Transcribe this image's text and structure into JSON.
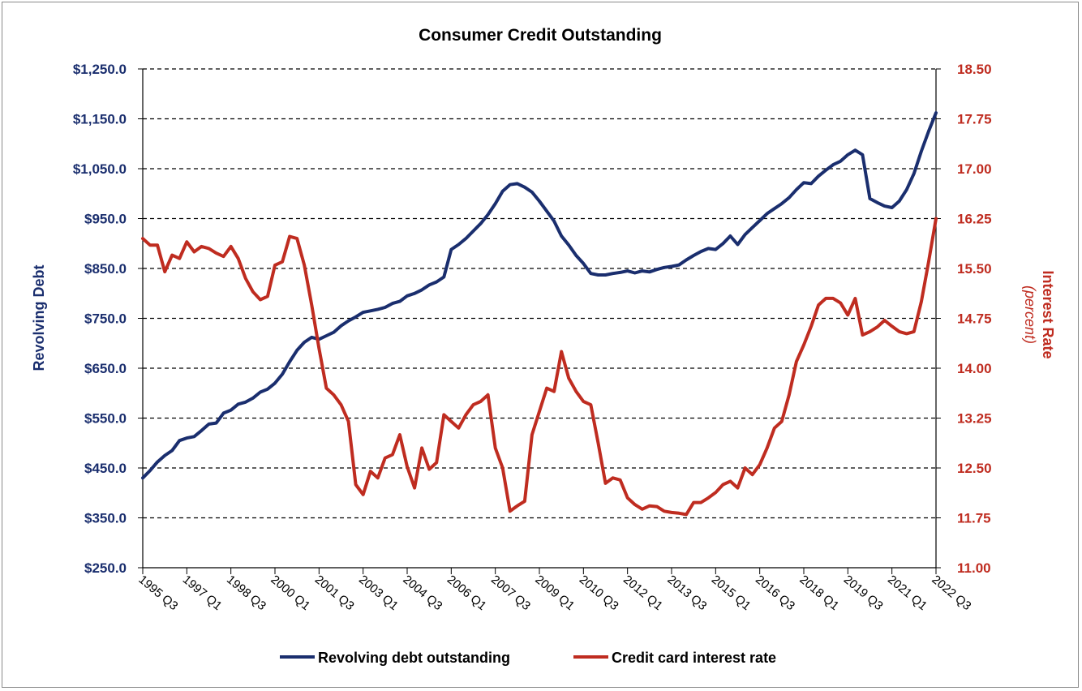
{
  "chart_data": {
    "type": "line",
    "title": "Consumer Credit Outstanding",
    "x": {
      "tick_labels": [
        "1995 Q3",
        "1997 Q1",
        "1998 Q3",
        "2000 Q1",
        "2001 Q3",
        "2003 Q1",
        "2004 Q3",
        "2006 Q1",
        "2007 Q3",
        "2009 Q1",
        "2010 Q3",
        "2012 Q1",
        "2013 Q3",
        "2015 Q1",
        "2016 Q3",
        "2018 Q1",
        "2019 Q3",
        "2021 Q1",
        "2022 Q3"
      ],
      "tick_years": [
        1995.5,
        1997.0,
        1998.5,
        2000.0,
        2001.5,
        2003.0,
        2004.5,
        2006.0,
        2007.5,
        2009.0,
        2010.5,
        2012.0,
        2013.5,
        2015.0,
        2016.5,
        2018.0,
        2019.5,
        2021.0,
        2022.5
      ],
      "range": [
        1995.5,
        2022.5
      ]
    },
    "y_left": {
      "label": "Revolving Debt",
      "ticks": [
        "$250.0",
        "$350.0",
        "$450.0",
        "$550.0",
        "$650.0",
        "$750.0",
        "$850.0",
        "$950.0",
        "$1,050.0",
        "$1,150.0",
        "$1,250.0"
      ],
      "range": [
        250,
        1250
      ]
    },
    "y_right": {
      "label": "Interest Rate",
      "unit": "(percent)",
      "ticks": [
        "11.00",
        "11.75",
        "12.50",
        "13.25",
        "14.00",
        "14.75",
        "15.50",
        "16.25",
        "17.00",
        "17.75",
        "18.50"
      ],
      "range": [
        11.0,
        18.5
      ]
    },
    "grid": "horizontal dashed",
    "legend_position": "bottom",
    "series": [
      {
        "name": "Revolving debt outstanding",
        "axis": "left",
        "color": "#1a2e6e",
        "points": [
          [
            1995.5,
            430
          ],
          [
            1995.75,
            445
          ],
          [
            1996.0,
            462
          ],
          [
            1996.25,
            475
          ],
          [
            1996.5,
            485
          ],
          [
            1996.75,
            505
          ],
          [
            1997.0,
            510
          ],
          [
            1997.25,
            513
          ],
          [
            1997.5,
            525
          ],
          [
            1997.75,
            538
          ],
          [
            1998.0,
            540
          ],
          [
            1998.25,
            560
          ],
          [
            1998.5,
            566
          ],
          [
            1998.75,
            578
          ],
          [
            1999.0,
            582
          ],
          [
            1999.25,
            590
          ],
          [
            1999.5,
            602
          ],
          [
            1999.75,
            608
          ],
          [
            2000.0,
            620
          ],
          [
            2000.25,
            638
          ],
          [
            2000.5,
            663
          ],
          [
            2000.75,
            686
          ],
          [
            2001.0,
            702
          ],
          [
            2001.25,
            712
          ],
          [
            2001.5,
            708
          ],
          [
            2001.75,
            715
          ],
          [
            2002.0,
            722
          ],
          [
            2002.25,
            735
          ],
          [
            2002.5,
            745
          ],
          [
            2002.75,
            753
          ],
          [
            2003.0,
            762
          ],
          [
            2003.25,
            765
          ],
          [
            2003.5,
            768
          ],
          [
            2003.75,
            772
          ],
          [
            2004.0,
            780
          ],
          [
            2004.25,
            784
          ],
          [
            2004.5,
            795
          ],
          [
            2004.75,
            800
          ],
          [
            2005.0,
            807
          ],
          [
            2005.25,
            817
          ],
          [
            2005.5,
            823
          ],
          [
            2005.75,
            833
          ],
          [
            2006.0,
            888
          ],
          [
            2006.25,
            898
          ],
          [
            2006.5,
            910
          ],
          [
            2006.75,
            925
          ],
          [
            2007.0,
            940
          ],
          [
            2007.25,
            958
          ],
          [
            2007.5,
            980
          ],
          [
            2007.75,
            1005
          ],
          [
            2008.0,
            1018
          ],
          [
            2008.25,
            1020
          ],
          [
            2008.5,
            1013
          ],
          [
            2008.75,
            1003
          ],
          [
            2009.0,
            985
          ],
          [
            2009.25,
            965
          ],
          [
            2009.5,
            945
          ],
          [
            2009.75,
            915
          ],
          [
            2010.0,
            897
          ],
          [
            2010.25,
            876
          ],
          [
            2010.5,
            860
          ],
          [
            2010.75,
            840
          ],
          [
            2011.0,
            837
          ],
          [
            2011.25,
            837
          ],
          [
            2011.5,
            840
          ],
          [
            2011.75,
            842
          ],
          [
            2012.0,
            845
          ],
          [
            2012.25,
            841
          ],
          [
            2012.5,
            845
          ],
          [
            2012.75,
            843
          ],
          [
            2013.0,
            848
          ],
          [
            2013.25,
            852
          ],
          [
            2013.5,
            854
          ],
          [
            2013.75,
            857
          ],
          [
            2014.0,
            867
          ],
          [
            2014.25,
            876
          ],
          [
            2014.5,
            884
          ],
          [
            2014.75,
            890
          ],
          [
            2015.0,
            888
          ],
          [
            2015.25,
            900
          ],
          [
            2015.5,
            915
          ],
          [
            2015.75,
            898
          ],
          [
            2016.0,
            918
          ],
          [
            2016.25,
            932
          ],
          [
            2016.5,
            946
          ],
          [
            2016.75,
            960
          ],
          [
            2017.0,
            970
          ],
          [
            2017.25,
            980
          ],
          [
            2017.5,
            992
          ],
          [
            2017.75,
            1008
          ],
          [
            2018.0,
            1022
          ],
          [
            2018.25,
            1020
          ],
          [
            2018.5,
            1035
          ],
          [
            2018.75,
            1047
          ],
          [
            2019.0,
            1058
          ],
          [
            2019.25,
            1065
          ],
          [
            2019.5,
            1078
          ],
          [
            2019.75,
            1087
          ],
          [
            2020.0,
            1078
          ],
          [
            2020.25,
            990
          ],
          [
            2020.5,
            982
          ],
          [
            2020.75,
            975
          ],
          [
            2021.0,
            972
          ],
          [
            2021.25,
            985
          ],
          [
            2021.5,
            1008
          ],
          [
            2021.75,
            1040
          ],
          [
            2022.0,
            1085
          ],
          [
            2022.25,
            1125
          ],
          [
            2022.5,
            1162
          ]
        ]
      },
      {
        "name": "Credit card interest rate",
        "axis": "right",
        "color": "#bf2c20",
        "points": [
          [
            1995.5,
            15.95
          ],
          [
            1995.75,
            15.85
          ],
          [
            1996.0,
            15.85
          ],
          [
            1996.25,
            15.45
          ],
          [
            1996.5,
            15.7
          ],
          [
            1996.75,
            15.65
          ],
          [
            1997.0,
            15.9
          ],
          [
            1997.25,
            15.75
          ],
          [
            1997.5,
            15.83
          ],
          [
            1997.75,
            15.8
          ],
          [
            1998.0,
            15.73
          ],
          [
            1998.25,
            15.68
          ],
          [
            1998.5,
            15.83
          ],
          [
            1998.75,
            15.65
          ],
          [
            1999.0,
            15.35
          ],
          [
            1999.25,
            15.15
          ],
          [
            1999.5,
            15.03
          ],
          [
            1999.75,
            15.08
          ],
          [
            2000.0,
            15.55
          ],
          [
            2000.25,
            15.6
          ],
          [
            2000.5,
            15.98
          ],
          [
            2000.75,
            15.95
          ],
          [
            2001.0,
            15.55
          ],
          [
            2001.25,
            14.95
          ],
          [
            2001.5,
            14.3
          ],
          [
            2001.75,
            13.7
          ],
          [
            2002.0,
            13.6
          ],
          [
            2002.25,
            13.45
          ],
          [
            2002.5,
            13.2
          ],
          [
            2002.75,
            12.25
          ],
          [
            2003.0,
            12.1
          ],
          [
            2003.25,
            12.45
          ],
          [
            2003.5,
            12.35
          ],
          [
            2003.75,
            12.65
          ],
          [
            2004.0,
            12.7
          ],
          [
            2004.25,
            13.0
          ],
          [
            2004.5,
            12.52
          ],
          [
            2004.75,
            12.2
          ],
          [
            2005.0,
            12.8
          ],
          [
            2005.25,
            12.48
          ],
          [
            2005.5,
            12.58
          ],
          [
            2005.75,
            13.3
          ],
          [
            2006.0,
            13.2
          ],
          [
            2006.25,
            13.1
          ],
          [
            2006.5,
            13.3
          ],
          [
            2006.75,
            13.45
          ],
          [
            2007.0,
            13.5
          ],
          [
            2007.25,
            13.6
          ],
          [
            2007.5,
            12.8
          ],
          [
            2007.75,
            12.5
          ],
          [
            2008.0,
            11.85
          ],
          [
            2008.25,
            11.93
          ],
          [
            2008.5,
            12.0
          ],
          [
            2008.75,
            13.0
          ],
          [
            2009.0,
            13.35
          ],
          [
            2009.25,
            13.7
          ],
          [
            2009.5,
            13.65
          ],
          [
            2009.75,
            14.25
          ],
          [
            2010.0,
            13.85
          ],
          [
            2010.25,
            13.65
          ],
          [
            2010.5,
            13.5
          ],
          [
            2010.75,
            13.45
          ],
          [
            2011.0,
            12.88
          ],
          [
            2011.25,
            12.27
          ],
          [
            2011.5,
            12.35
          ],
          [
            2011.75,
            12.32
          ],
          [
            2012.0,
            12.05
          ],
          [
            2012.25,
            11.95
          ],
          [
            2012.5,
            11.88
          ],
          [
            2012.75,
            11.93
          ],
          [
            2013.0,
            11.92
          ],
          [
            2013.25,
            11.85
          ],
          [
            2013.5,
            11.83
          ],
          [
            2013.75,
            11.82
          ],
          [
            2014.0,
            11.8
          ],
          [
            2014.25,
            11.98
          ],
          [
            2014.5,
            11.98
          ],
          [
            2014.75,
            12.05
          ],
          [
            2015.0,
            12.13
          ],
          [
            2015.25,
            12.25
          ],
          [
            2015.5,
            12.3
          ],
          [
            2015.75,
            12.2
          ],
          [
            2016.0,
            12.5
          ],
          [
            2016.25,
            12.4
          ],
          [
            2016.5,
            12.55
          ],
          [
            2016.75,
            12.8
          ],
          [
            2017.0,
            13.1
          ],
          [
            2017.25,
            13.2
          ],
          [
            2017.5,
            13.6
          ],
          [
            2017.75,
            14.1
          ],
          [
            2018.0,
            14.35
          ],
          [
            2018.25,
            14.63
          ],
          [
            2018.5,
            14.95
          ],
          [
            2018.75,
            15.05
          ],
          [
            2019.0,
            15.05
          ],
          [
            2019.25,
            14.98
          ],
          [
            2019.5,
            14.8
          ],
          [
            2019.75,
            15.05
          ],
          [
            2020.0,
            14.5
          ],
          [
            2020.25,
            14.55
          ],
          [
            2020.5,
            14.62
          ],
          [
            2020.75,
            14.72
          ],
          [
            2021.0,
            14.63
          ],
          [
            2021.25,
            14.55
          ],
          [
            2021.5,
            14.52
          ],
          [
            2021.75,
            14.55
          ],
          [
            2022.0,
            15.0
          ],
          [
            2022.25,
            15.6
          ],
          [
            2022.5,
            16.25
          ]
        ]
      }
    ]
  }
}
